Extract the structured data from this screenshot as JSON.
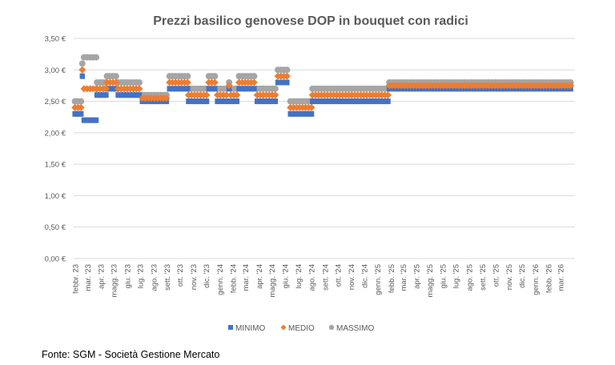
{
  "chart_data": {
    "type": "scatter",
    "title": "Prezzi basilico genovese DOP in bouquet con radici",
    "xlabel": "",
    "ylabel": "",
    "ylim": [
      0,
      3.5
    ],
    "yticks": [
      0,
      0.5,
      1,
      1.5,
      2,
      2.5,
      3,
      3.5
    ],
    "ytick_labels": [
      "0,00 €",
      "0,50 €",
      "1,00 €",
      "1,50 €",
      "2,00 €",
      "2,50 €",
      "3,00 €",
      "3,50 €"
    ],
    "xlim": [
      "2023-01-27",
      "2026-04-02"
    ],
    "xtick_dates": [
      "2023-02-01",
      "2023-03-01",
      "2023-04-01",
      "2023-05-01",
      "2023-06-01",
      "2023-07-01",
      "2023-08-01",
      "2023-09-01",
      "2023-10-01",
      "2023-11-01",
      "2023-12-01",
      "2024-01-01",
      "2024-02-01",
      "2024-03-01",
      "2024-04-01",
      "2024-05-01",
      "2024-06-01",
      "2024-07-01",
      "2024-08-01",
      "2024-09-01",
      "2024-10-01",
      "2024-11-01",
      "2024-12-01",
      "2025-01-01",
      "2025-02-01",
      "2025-03-01",
      "2025-04-01",
      "2025-05-01",
      "2025-06-01",
      "2025-07-01",
      "2025-08-01",
      "2025-09-01",
      "2025-10-01",
      "2025-11-01",
      "2025-12-01",
      "2026-01-01",
      "2026-02-01",
      "2026-03-01"
    ],
    "xtick_labels": [
      "febbr. 23",
      "mar. '23",
      "apr. '23",
      "magg. '23",
      "giu. '23",
      "lug. '23",
      "ago. '23",
      "sett. '23",
      "ott. '23",
      "nov. '23",
      "dic. '23",
      "genn. '24",
      "febb. '24",
      "mar. '24",
      "apr. '24",
      "magg. '24",
      "giu. '24",
      "lug. '24",
      "ago. '24",
      "sett. '24",
      "ott. '24",
      "nov. '24",
      "dic. '24",
      "genn. '25",
      "febb. '25",
      "mar. '25",
      "apr. '25",
      "magg. '25",
      "giu. '25",
      "lug. '25",
      "ago. '25",
      "sett. '25",
      "ott. '25",
      "nov. '25",
      "dic. '25",
      "genn. '26",
      "febb. '26",
      "mar. '26"
    ],
    "grid": true,
    "legend_placement": "bottom",
    "series": [
      {
        "name": "MINIMO",
        "color": "#4472c4",
        "marker": "square"
      },
      {
        "name": "MEDIO",
        "color": "#ed7d31",
        "marker": "diamond"
      },
      {
        "name": "MASSIMO",
        "color": "#a5a5a5",
        "marker": "circle"
      }
    ],
    "periods": [
      {
        "from": "2023-01-30",
        "to": "2023-02-13",
        "values": [
          2.3,
          2.4,
          2.5
        ]
      },
      {
        "from": "2023-02-16",
        "to": "2023-02-16",
        "values": [
          2.9,
          3.0,
          3.1
        ]
      },
      {
        "from": "2023-02-20",
        "to": "2023-03-20",
        "values": [
          2.2,
          2.7,
          3.2
        ]
      },
      {
        "from": "2023-03-22",
        "to": "2023-04-12",
        "values": [
          2.6,
          2.7,
          2.8
        ]
      },
      {
        "from": "2023-04-14",
        "to": "2023-05-08",
        "values": [
          2.7,
          2.8,
          2.9
        ]
      },
      {
        "from": "2023-05-10",
        "to": "2023-07-03",
        "values": [
          2.6,
          2.7,
          2.8
        ]
      },
      {
        "from": "2023-07-05",
        "to": "2023-09-04",
        "values": [
          2.5,
          2.55,
          2.6
        ]
      },
      {
        "from": "2023-09-06",
        "to": "2023-10-18",
        "values": [
          2.7,
          2.8,
          2.9
        ]
      },
      {
        "from": "2023-10-20",
        "to": "2023-12-04",
        "values": [
          2.5,
          2.6,
          2.7
        ]
      },
      {
        "from": "2023-12-06",
        "to": "2023-12-24",
        "values": [
          2.7,
          2.8,
          2.9
        ]
      },
      {
        "from": "2023-12-26",
        "to": "2024-01-19",
        "values": [
          2.5,
          2.6,
          2.7
        ]
      },
      {
        "from": "2024-01-22",
        "to": "2024-01-22",
        "values": [
          2.7,
          2.75,
          2.8
        ]
      },
      {
        "from": "2024-01-26",
        "to": "2024-02-12",
        "values": [
          2.5,
          2.6,
          2.7
        ]
      },
      {
        "from": "2024-02-14",
        "to": "2024-03-25",
        "values": [
          2.7,
          2.8,
          2.9
        ]
      },
      {
        "from": "2024-03-27",
        "to": "2024-05-12",
        "values": [
          2.5,
          2.6,
          2.7
        ]
      },
      {
        "from": "2024-05-14",
        "to": "2024-06-10",
        "values": [
          2.8,
          2.9,
          3.0
        ]
      },
      {
        "from": "2024-06-12",
        "to": "2024-07-31",
        "values": [
          2.3,
          2.4,
          2.5
        ]
      },
      {
        "from": "2024-08-02",
        "to": "2025-01-24",
        "values": [
          2.5,
          2.6,
          2.7
        ]
      },
      {
        "from": "2025-01-27",
        "to": "2026-03-27",
        "values": [
          2.7,
          2.75,
          2.8
        ]
      }
    ]
  },
  "source": "Fonte: SGM - Società Gestione Mercato"
}
